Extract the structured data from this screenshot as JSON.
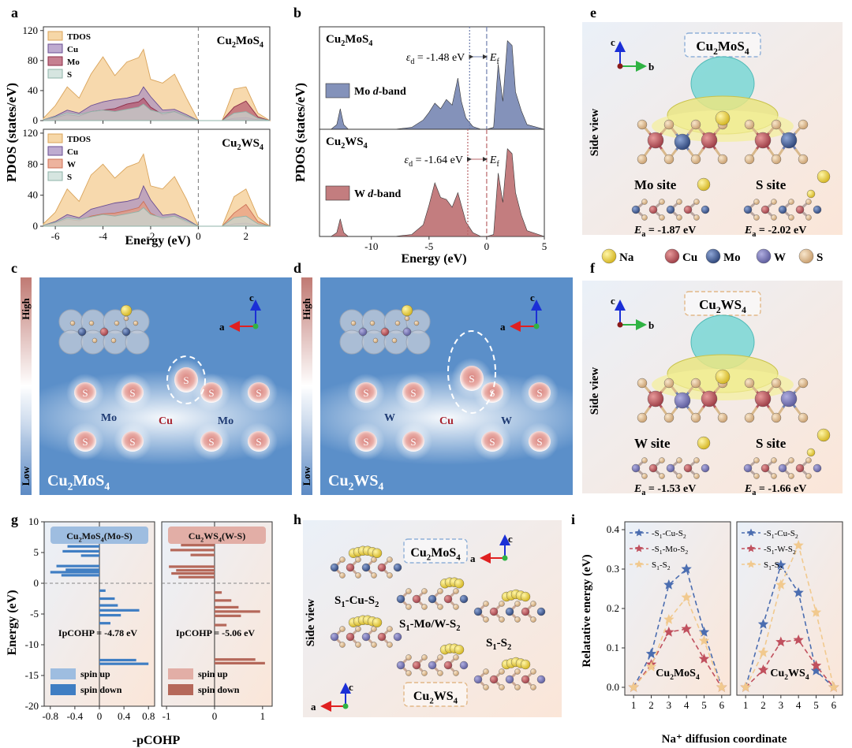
{
  "panel_labels": {
    "a": "a",
    "b": "b",
    "c": "c",
    "d": "d",
    "e": "e",
    "f": "f",
    "g": "g",
    "h": "h",
    "i": "i"
  },
  "compounds": {
    "mo": "Cu₂MoS₄",
    "w": "Cu₂WS₄"
  },
  "legend_atoms": {
    "na": "Na",
    "cu": "Cu",
    "mo": "Mo",
    "w": "W",
    "s": "S"
  },
  "axes": {
    "a": "a",
    "b": "b",
    "c": "c"
  },
  "colors": {
    "tdos": "#f3c98a",
    "cu": "#a88fc0",
    "mo": "#b3556c",
    "w": "#e79a7e",
    "s": "#c8dcd6",
    "dband_mo": "#6f7fae",
    "dband_w": "#b96669",
    "blue_bg": "#5b8fc9",
    "bar_mo": "#3f7ec3",
    "bar_w": "#b5685a"
  },
  "text": {
    "pdos_ylabel": "PDOS (states/eV)",
    "energy_ev": "Energy (eV)",
    "tdos": "TDOS",
    "cu": "Cu",
    "mo": "Mo",
    "w": "W",
    "s": "S",
    "ed_mo": "εd = -1.48 eV",
    "ed_w": "εd = -1.64 eV",
    "ef": "Ef",
    "mo_dband": "Mo d-band",
    "w_dband": "W d-band",
    "high": "High",
    "low": "Low",
    "side_view": "Side view",
    "mo_site": "Mo site",
    "w_site": "W site",
    "s_site": "S site",
    "ea_mo": "Ea = -1.87 eV",
    "ea_s_mo": "Ea = -2.02 eV",
    "ea_w": "Ea = -1.53 eV",
    "ea_s_w": "Ea = -1.66 eV",
    "cohp_mo": "Cu₂MoS₄(Mo-S)",
    "cohp_w": "Cu₂WS₄(W-S)",
    "ipcohp_mo": "IpCOHP = -4.78 eV",
    "ipcohp_w": "IpCOHP = -5.06 eV",
    "spin_up": "spin up",
    "spin_down": "spin down",
    "pcohp": "-pCOHP",
    "path1": "S₁-Cu-S₂",
    "path2": "S₁-Mo/W-S₂",
    "path3": "S₁-S₂",
    "rel_energy": "Relatative energy (eV)",
    "na_coord": "Na⁺ diffusion coordinate"
  },
  "chart_data": [
    {
      "panel": "a",
      "type": "area",
      "title": "Cu2MoS4",
      "xlabel": "Energy (eV)",
      "ylabel": "PDOS (states/eV)",
      "xlim": [
        -6.5,
        3
      ],
      "ylim": [
        0,
        125
      ],
      "x": [
        -6.5,
        -6.0,
        -5.5,
        -5.0,
        -4.5,
        -4.0,
        -3.5,
        -3.0,
        -2.5,
        -2.3,
        -2.0,
        -1.5,
        -1.0,
        -0.5,
        0.0,
        1.0,
        1.5,
        2.0,
        2.5,
        3.0
      ],
      "series": [
        {
          "name": "TDOS",
          "values": [
            3,
            20,
            45,
            30,
            62,
            85,
            60,
            78,
            84,
            95,
            55,
            50,
            62,
            30,
            0,
            0,
            42,
            45,
            10,
            0
          ]
        },
        {
          "name": "Cu",
          "values": [
            1,
            6,
            14,
            10,
            20,
            25,
            28,
            30,
            34,
            45,
            32,
            14,
            15,
            8,
            0,
            0,
            3,
            4,
            1,
            0
          ]
        },
        {
          "name": "Mo",
          "values": [
            1,
            4,
            8,
            6,
            12,
            14,
            16,
            22,
            25,
            30,
            18,
            8,
            12,
            5,
            0,
            0,
            18,
            26,
            5,
            0
          ]
        },
        {
          "name": "S",
          "values": [
            1,
            5,
            10,
            8,
            12,
            14,
            12,
            15,
            18,
            22,
            14,
            10,
            12,
            6,
            0,
            0,
            10,
            12,
            3,
            0
          ]
        }
      ]
    },
    {
      "panel": "a",
      "type": "area",
      "title": "Cu2WS4",
      "xlabel": "Energy (eV)",
      "ylabel": "PDOS (states/eV)",
      "xlim": [
        -6.5,
        3
      ],
      "ylim": [
        0,
        125
      ],
      "x": [
        -6.5,
        -6.0,
        -5.5,
        -5.0,
        -4.5,
        -4.0,
        -3.5,
        -3.0,
        -2.5,
        -2.3,
        -2.0,
        -1.5,
        -1.0,
        -0.5,
        0.0,
        1.0,
        1.5,
        2.0,
        2.5,
        3.0
      ],
      "series": [
        {
          "name": "TDOS",
          "values": [
            3,
            18,
            48,
            32,
            66,
            80,
            62,
            76,
            82,
            93,
            52,
            48,
            64,
            35,
            0,
            0,
            38,
            48,
            12,
            0
          ]
        },
        {
          "name": "Cu",
          "values": [
            1,
            6,
            15,
            11,
            22,
            26,
            30,
            32,
            36,
            52,
            34,
            14,
            16,
            9,
            0,
            0,
            3,
            4,
            1,
            0
          ]
        },
        {
          "name": "W",
          "values": [
            1,
            4,
            9,
            7,
            13,
            16,
            17,
            20,
            24,
            32,
            17,
            9,
            13,
            5,
            0,
            0,
            17,
            28,
            6,
            0
          ]
        },
        {
          "name": "S",
          "values": [
            1,
            5,
            11,
            9,
            12,
            15,
            13,
            16,
            19,
            24,
            15,
            11,
            13,
            7,
            0,
            0,
            11,
            13,
            3,
            0
          ]
        }
      ]
    },
    {
      "panel": "b",
      "type": "area",
      "series_name": "Mo d-band",
      "xlim": [
        -14.5,
        5
      ],
      "xticks": [
        -10,
        -5,
        0,
        5
      ],
      "x": [
        -14.5,
        -13.5,
        -13.0,
        -12.7,
        -12.4,
        -12.0,
        -8.0,
        -6.5,
        -5.5,
        -5.0,
        -4.5,
        -4.0,
        -3.5,
        -3.0,
        -2.5,
        -2.2,
        -1.8,
        -1.2,
        -0.5,
        0.0,
        0.6,
        1.0,
        1.4,
        1.8,
        2.2,
        2.5,
        3.0,
        3.5,
        5.0
      ],
      "values": [
        0,
        0,
        5,
        22,
        5,
        0,
        0,
        2,
        10,
        18,
        28,
        22,
        32,
        26,
        55,
        30,
        12,
        3,
        0,
        0,
        2,
        70,
        30,
        95,
        90,
        40,
        20,
        5,
        0
      ],
      "band_center": -1.48,
      "fermi": 0
    },
    {
      "panel": "b",
      "type": "area",
      "series_name": "W d-band",
      "xlim": [
        -14.5,
        5
      ],
      "xticks": [
        -10,
        -5,
        0,
        5
      ],
      "x": [
        -14.5,
        -13.5,
        -13.0,
        -12.7,
        -12.4,
        -12.0,
        -8.0,
        -6.5,
        -5.5,
        -5.0,
        -4.5,
        -4.0,
        -3.5,
        -3.0,
        -2.5,
        -2.2,
        -1.8,
        -1.2,
        -0.5,
        0.0,
        0.6,
        1.0,
        1.4,
        1.8,
        2.2,
        2.5,
        3.0,
        3.5,
        5.0
      ],
      "values": [
        0,
        0,
        4,
        18,
        4,
        0,
        0,
        2,
        12,
        32,
        55,
        40,
        38,
        30,
        45,
        32,
        15,
        4,
        0,
        0,
        2,
        65,
        35,
        90,
        85,
        45,
        22,
        6,
        0
      ],
      "band_center": -1.64,
      "fermi": 0
    },
    {
      "panel": "g",
      "type": "bar",
      "title": "Cu2MoS4(Mo-S)",
      "xlabel": "-pCOHP",
      "ylabel": "Energy (eV)",
      "xlim": [
        -0.9,
        0.9
      ],
      "ylim": [
        -20,
        10
      ],
      "xticks": [
        -0.8,
        -0.4,
        0.0,
        0.4,
        0.8
      ],
      "yticks": [
        -20,
        -15,
        -10,
        -5,
        0,
        5,
        10
      ],
      "energy": [
        6.0,
        5.2,
        4.5,
        2.8,
        2.2,
        1.8,
        1.3,
        -1.2,
        -2.5,
        -3.6,
        -4.4,
        -5.2,
        -6.5,
        -12.5,
        -13.1
      ],
      "values": [
        -0.52,
        -0.6,
        -0.3,
        -0.7,
        -0.55,
        -0.8,
        -0.62,
        0.1,
        0.25,
        0.3,
        0.65,
        0.35,
        0.18,
        0.6,
        0.8
      ]
    },
    {
      "panel": "g",
      "type": "bar",
      "title": "Cu2WS4(W-S)",
      "xlabel": "-pCOHP",
      "ylabel": "Energy (eV)",
      "xlim": [
        -1.1,
        1.2
      ],
      "ylim": [
        -20,
        10
      ],
      "xticks": [
        -1,
        0,
        1
      ],
      "energy": [
        6.2,
        5.4,
        4.6,
        2.7,
        2.1,
        1.6,
        1.0,
        -1.5,
        -2.8,
        -3.9,
        -4.6,
        -5.3,
        -6.8,
        -12.4,
        -13.0
      ],
      "values": [
        -0.7,
        -0.92,
        -0.5,
        -0.95,
        -0.8,
        -0.9,
        -0.75,
        0.15,
        0.35,
        0.5,
        0.95,
        0.55,
        0.25,
        0.85,
        1.05
      ]
    },
    {
      "panel": "i",
      "type": "line",
      "title": "Cu2MoS4",
      "xlabel": "Na+ diffusion coordinate",
      "ylabel": "Relatative energy (eV)",
      "x": [
        1,
        2,
        3,
        4,
        5,
        6
      ],
      "xlim": [
        0.5,
        6.5
      ],
      "ylim": [
        -0.02,
        0.42
      ],
      "yticks": [
        0.0,
        0.1,
        0.2,
        0.3,
        0.4
      ],
      "series": [
        {
          "name": "S1-Cu-S2",
          "color": "#4b6db0",
          "values": [
            0,
            0.085,
            0.26,
            0.3,
            0.14,
            0
          ]
        },
        {
          "name": "S1-Mo-S2",
          "color": "#c0505e",
          "values": [
            0,
            0.058,
            0.14,
            0.148,
            0.072,
            0
          ]
        },
        {
          "name": "S1-S2",
          "color": "#f1c98e",
          "values": [
            0,
            0.052,
            0.172,
            0.228,
            0.118,
            0
          ]
        }
      ]
    },
    {
      "panel": "i",
      "type": "line",
      "title": "Cu2WS4",
      "xlabel": "Na+ diffusion coordinate",
      "x": [
        1,
        2,
        3,
        4,
        5,
        6
      ],
      "xlim": [
        0.5,
        6.5
      ],
      "ylim": [
        -0.02,
        0.42
      ],
      "series": [
        {
          "name": "S1-Cu-S2",
          "color": "#4b6db0",
          "values": [
            0,
            0.16,
            0.31,
            0.24,
            0.042,
            0
          ]
        },
        {
          "name": "S1-W-S2",
          "color": "#c0505e",
          "values": [
            0,
            0.044,
            0.115,
            0.12,
            0.055,
            0
          ]
        },
        {
          "name": "S1-S2",
          "color": "#f1c98e",
          "values": [
            0,
            0.088,
            0.26,
            0.36,
            0.19,
            0
          ]
        }
      ]
    }
  ]
}
